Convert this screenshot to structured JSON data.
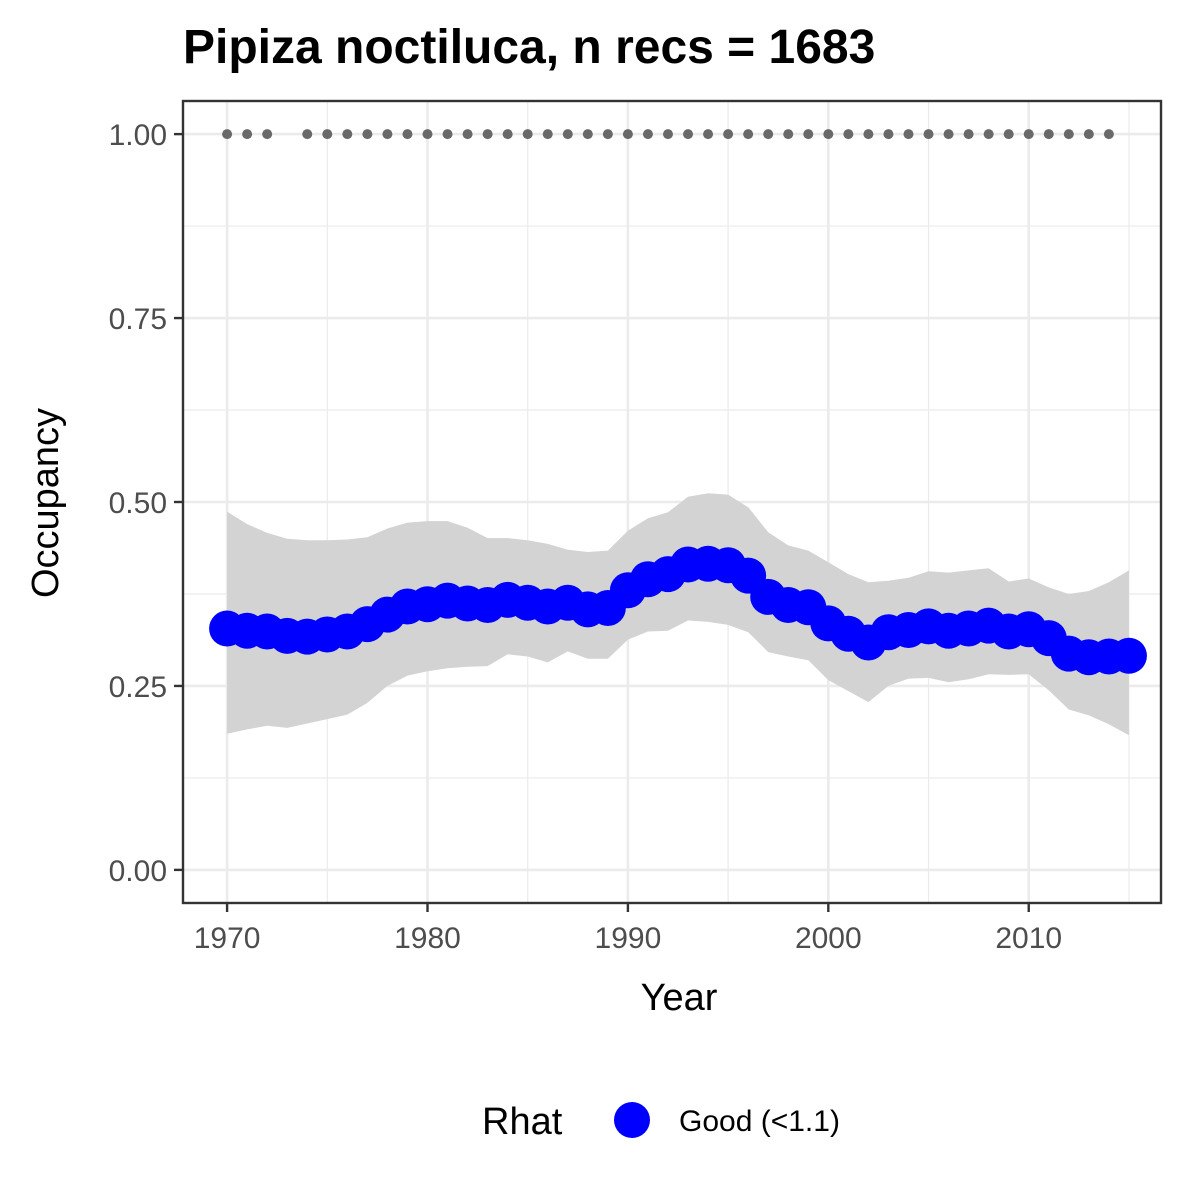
{
  "chart_data": {
    "type": "line",
    "title": "Pipiza noctiluca, n recs = 1683",
    "xlabel": "Year",
    "ylabel": "Occupancy",
    "xlim": [
      1967.8,
      2016.6
    ],
    "ylim": [
      -0.045,
      1.045
    ],
    "x_ticks": [
      1970,
      1980,
      1990,
      2000,
      2010
    ],
    "x_tick_labels": [
      "1970",
      "1980",
      "1990",
      "2000",
      "2010"
    ],
    "y_ticks": [
      0,
      0.25,
      0.5,
      0.75,
      1.0
    ],
    "y_tick_labels": [
      "0.00",
      "0.25",
      "0.50",
      "0.75",
      "1.00"
    ],
    "grid": true,
    "x": [
      1970,
      1971,
      1972,
      1973,
      1974,
      1975,
      1976,
      1977,
      1978,
      1979,
      1980,
      1981,
      1982,
      1983,
      1984,
      1985,
      1986,
      1987,
      1988,
      1989,
      1990,
      1991,
      1992,
      1993,
      1994,
      1995,
      1996,
      1997,
      1998,
      1999,
      2000,
      2001,
      2002,
      2003,
      2004,
      2005,
      2006,
      2007,
      2008,
      2009,
      2010,
      2011,
      2012,
      2013,
      2014,
      2015
    ],
    "series": [
      {
        "values": [
          0.328,
          0.325,
          0.324,
          0.318,
          0.317,
          0.32,
          0.324,
          0.334,
          0.347,
          0.358,
          0.361,
          0.366,
          0.362,
          0.36,
          0.367,
          0.363,
          0.358,
          0.363,
          0.354,
          0.356,
          0.38,
          0.395,
          0.402,
          0.415,
          0.416,
          0.414,
          0.4,
          0.371,
          0.36,
          0.357,
          0.335,
          0.321,
          0.309,
          0.323,
          0.326,
          0.331,
          0.325,
          0.328,
          0.332,
          0.324,
          0.327,
          0.315,
          0.294,
          0.289,
          0.29,
          0.291
        ],
        "lower": [
          0.185,
          0.191,
          0.196,
          0.193,
          0.199,
          0.205,
          0.211,
          0.227,
          0.25,
          0.264,
          0.27,
          0.274,
          0.276,
          0.277,
          0.293,
          0.29,
          0.282,
          0.297,
          0.287,
          0.287,
          0.313,
          0.324,
          0.325,
          0.339,
          0.337,
          0.333,
          0.323,
          0.296,
          0.29,
          0.285,
          0.258,
          0.243,
          0.228,
          0.25,
          0.26,
          0.261,
          0.255,
          0.259,
          0.266,
          0.265,
          0.266,
          0.244,
          0.218,
          0.21,
          0.198,
          0.183
        ],
        "upper": [
          0.487,
          0.47,
          0.458,
          0.45,
          0.448,
          0.448,
          0.449,
          0.452,
          0.464,
          0.472,
          0.474,
          0.474,
          0.465,
          0.451,
          0.451,
          0.448,
          0.443,
          0.435,
          0.432,
          0.434,
          0.461,
          0.478,
          0.486,
          0.507,
          0.512,
          0.51,
          0.493,
          0.459,
          0.441,
          0.434,
          0.418,
          0.402,
          0.391,
          0.393,
          0.397,
          0.406,
          0.404,
          0.407,
          0.41,
          0.392,
          0.396,
          0.384,
          0.375,
          0.379,
          0.391,
          0.407
        ],
        "color": "#0000ff"
      }
    ],
    "data_presence": {
      "years": [
        1970,
        1971,
        1972,
        1974,
        1975,
        1976,
        1977,
        1978,
        1979,
        1980,
        1981,
        1982,
        1983,
        1984,
        1985,
        1986,
        1987,
        1988,
        1989,
        1990,
        1991,
        1992,
        1993,
        1994,
        1995,
        1996,
        1997,
        1998,
        1999,
        2000,
        2001,
        2002,
        2003,
        2004,
        2005,
        2006,
        2007,
        2008,
        2009,
        2010,
        2011,
        2012,
        2013,
        2014
      ],
      "value": 1.0,
      "color": "#696969"
    },
    "ribbon_color": "#d3d3d3",
    "legend": {
      "position": "bottom",
      "title": "Rhat",
      "items": [
        {
          "label": "Good (<1.1)",
          "color": "#0000ff"
        }
      ]
    }
  }
}
